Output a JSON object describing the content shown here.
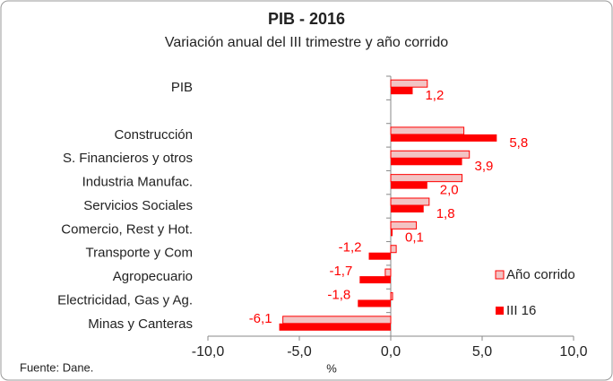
{
  "chart_data": {
    "type": "barh",
    "title": "PIB -  2016",
    "subtitle": "Variación anual del III trimestre y año corrido",
    "x_label": "%",
    "source": "Fuente: Dane.",
    "categories": [
      "PIB",
      null,
      "Construcción",
      "S. Financieros y otros",
      "Industria Manufac.",
      "Servicios Sociales",
      "Comercio, Rest y Hot.",
      "Transporte y Com",
      "Agropecuario",
      "Electricidad, Gas y Ag.",
      "Minas y Canteras"
    ],
    "series": [
      {
        "name": "Año corrido",
        "color": "#f2c4c4",
        "edge": "#ff0000",
        "values": [
          2.0,
          null,
          4.0,
          4.3,
          3.9,
          2.1,
          1.4,
          0.3,
          -0.3,
          0.1,
          -5.9
        ]
      },
      {
        "name": "III 16",
        "color": "#ff0000",
        "values": [
          1.2,
          null,
          5.8,
          3.9,
          2.0,
          1.8,
          0.1,
          -1.2,
          -1.7,
          -1.8,
          -6.1
        ],
        "value_labels": [
          "1,2",
          null,
          "5,8",
          "3,9",
          "2,0",
          "1,8",
          "0,1",
          "-1,2",
          "-1,7",
          "-1,8",
          "-6,1"
        ]
      }
    ],
    "xlim": [
      -10,
      10
    ],
    "xticks": [
      {
        "value": -10,
        "label": "-10,0"
      },
      {
        "value": -5,
        "label": "-5,0"
      },
      {
        "value": 0,
        "label": "0,0"
      },
      {
        "value": 5,
        "label": "5,0"
      },
      {
        "value": 10,
        "label": "10,0"
      }
    ],
    "legend": "lower right"
  }
}
